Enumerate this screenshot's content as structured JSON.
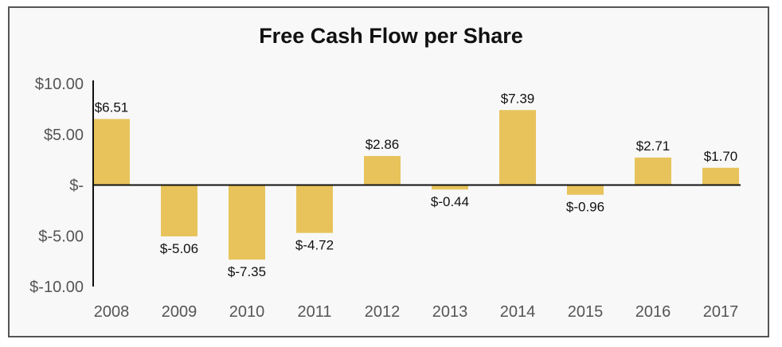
{
  "chart_data": {
    "type": "bar",
    "title": "Free Cash Flow per Share",
    "categories": [
      "2008",
      "2009",
      "2010",
      "2011",
      "2012",
      "2013",
      "2014",
      "2015",
      "2016",
      "2017"
    ],
    "values": [
      6.51,
      -5.06,
      -7.35,
      -4.72,
      2.86,
      -0.44,
      7.39,
      -0.96,
      2.71,
      1.7
    ],
    "data_labels": [
      "$6.51",
      "$-5.06",
      "$-7.35",
      "$-4.72",
      "$2.86",
      "$-0.44",
      "$7.39",
      "$-0.96",
      "$2.71",
      "$1.70"
    ],
    "y_ticks": [
      10,
      5,
      0,
      -5,
      -10
    ],
    "y_tick_labels": [
      "$10.00",
      "$5.00",
      "$-",
      "$-5.00",
      "$-10.00"
    ],
    "ylim": [
      -10,
      10
    ],
    "bar_color": "#e8c35c",
    "grid": false,
    "legend": "none"
  }
}
